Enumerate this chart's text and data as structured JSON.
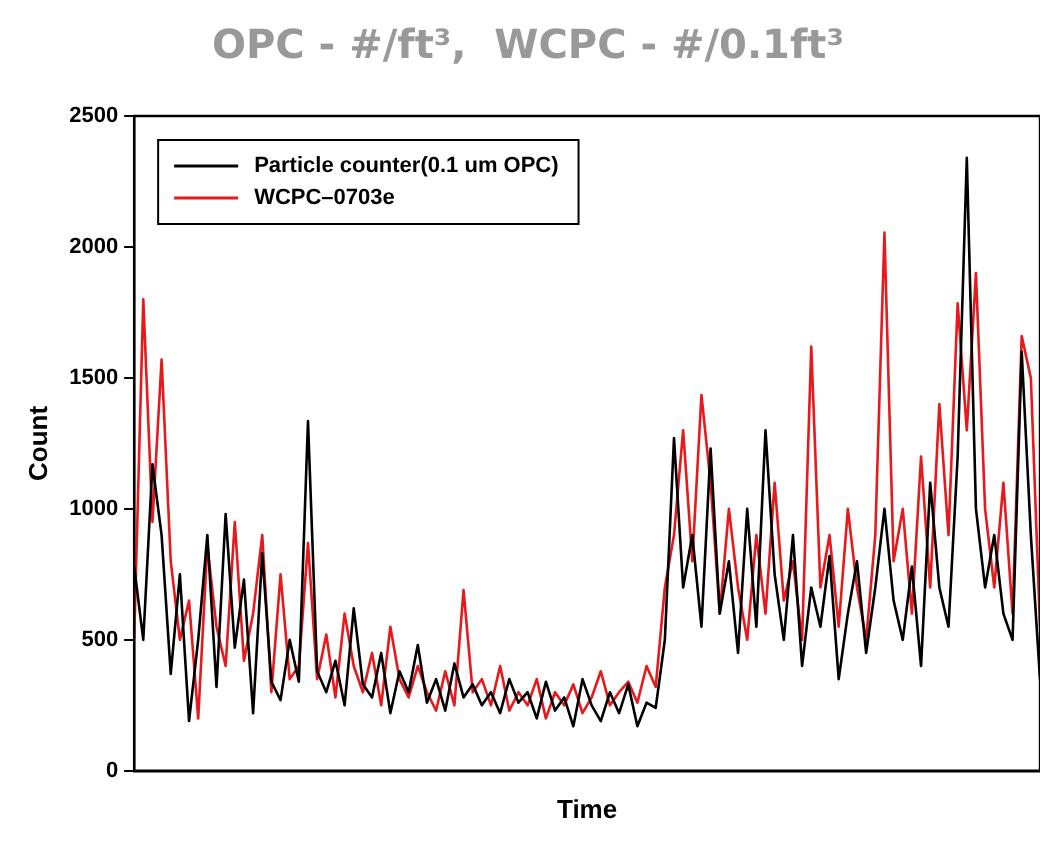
{
  "chart_data": {
    "type": "line",
    "title": "OPC - #/ft³,  WCPC - #/0.1ft³",
    "xlabel": "Time",
    "ylabel": "Count",
    "categories": [
      null,
      null,
      null,
      null,
      null,
      null,
      null,
      null,
      null,
      null,
      null,
      null,
      null,
      null,
      null,
      null,
      null,
      null,
      null,
      null,
      null,
      null,
      null,
      null,
      null,
      null,
      null,
      null,
      null,
      null,
      null,
      null,
      null,
      null,
      null,
      null,
      null,
      null,
      null,
      null,
      null,
      null,
      null,
      null,
      null,
      null,
      null,
      null,
      null,
      null,
      null,
      null,
      null,
      null,
      null,
      null,
      null,
      null,
      null,
      null,
      null,
      null,
      null,
      null,
      null,
      null,
      null,
      null,
      null,
      null,
      null,
      null,
      null,
      null,
      null,
      null,
      null,
      null,
      null,
      null,
      null,
      null,
      null,
      null,
      null,
      null,
      null,
      null,
      null,
      null,
      null,
      null,
      null,
      null,
      null,
      null,
      null,
      null,
      null,
      null
    ],
    "series": [
      {
        "name": "Particle counter(0.1 um OPC)",
        "color": "#000000",
        "values": [
          780,
          500,
          1170,
          900,
          370,
          750,
          190,
          500,
          900,
          320,
          980,
          470,
          730,
          220,
          830,
          340,
          270,
          500,
          340,
          1335,
          380,
          300,
          420,
          250,
          620,
          330,
          280,
          450,
          220,
          380,
          300,
          480,
          260,
          350,
          230,
          410,
          280,
          330,
          250,
          300,
          220,
          350,
          260,
          300,
          200,
          340,
          230,
          280,
          170,
          350,
          250,
          190,
          300,
          220,
          330,
          170,
          260,
          240,
          500,
          1270,
          700,
          900,
          550,
          1230,
          600,
          800,
          450,
          1000,
          550,
          1300,
          750,
          500,
          900,
          400,
          700,
          550,
          820,
          350,
          600,
          800,
          450,
          700,
          1000,
          650,
          500,
          780,
          400,
          1100,
          700,
          550,
          1200,
          2340,
          1000,
          700,
          900,
          600,
          500,
          1600,
          900,
          350
        ]
      },
      {
        "name": "WCPC–0703e",
        "color": "#e8191c",
        "values": [
          500,
          1800,
          950,
          1570,
          800,
          500,
          650,
          200,
          860,
          550,
          400,
          950,
          420,
          600,
          900,
          300,
          750,
          350,
          400,
          870,
          350,
          520,
          280,
          600,
          400,
          300,
          450,
          250,
          550,
          350,
          280,
          400,
          300,
          230,
          380,
          250,
          690,
          300,
          350,
          250,
          400,
          230,
          300,
          250,
          350,
          200,
          300,
          250,
          330,
          220,
          280,
          380,
          250,
          300,
          340,
          260,
          400,
          320,
          700,
          900,
          1300,
          800,
          1435,
          1100,
          600,
          1000,
          700,
          500,
          900,
          600,
          1100,
          650,
          800,
          500,
          1620,
          700,
          900,
          550,
          1000,
          700,
          500,
          900,
          2055,
          800,
          1000,
          600,
          1200,
          700,
          1400,
          900,
          1785,
          1300,
          1900,
          1000,
          700,
          1100,
          600,
          1660,
          1500,
          550
        ]
      }
    ],
    "ylim": [
      0,
      2500
    ],
    "yticks": [
      0,
      500,
      1000,
      1500,
      2000,
      2500
    ],
    "grid": false,
    "legend": "top left",
    "marker": "none",
    "line_style": "solid"
  }
}
